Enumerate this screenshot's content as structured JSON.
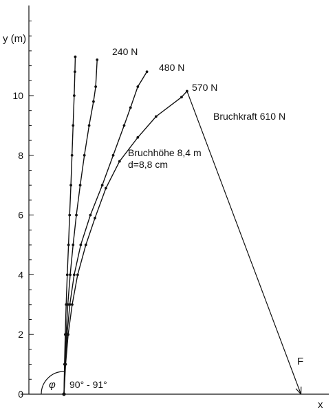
{
  "chart_data": {
    "type": "line",
    "xlabel": "x",
    "ylabel": "y (m)",
    "ylim": [
      0,
      12.5
    ],
    "y_ticks": [
      0,
      2,
      4,
      6,
      8,
      10
    ],
    "y_minor_step": 0.5,
    "series": [
      {
        "name": "240 N",
        "points": [
          [
            0,
            0
          ],
          [
            0.03,
            1
          ],
          [
            0.07,
            2
          ],
          [
            0.12,
            3
          ],
          [
            0.18,
            4
          ],
          [
            0.25,
            5
          ],
          [
            0.31,
            6
          ],
          [
            0.38,
            7
          ],
          [
            0.44,
            8
          ],
          [
            0.5,
            9
          ],
          [
            0.56,
            10
          ],
          [
            0.6,
            10.8
          ],
          [
            0.62,
            11.3
          ]
        ]
      },
      {
        "name": "480 N",
        "points": [
          [
            0,
            0
          ],
          [
            0.05,
            1
          ],
          [
            0.12,
            2
          ],
          [
            0.21,
            3
          ],
          [
            0.34,
            4
          ],
          [
            0.5,
            5
          ],
          [
            0.68,
            6
          ],
          [
            0.89,
            7
          ],
          [
            1.12,
            8
          ],
          [
            1.38,
            9
          ],
          [
            1.62,
            9.8
          ],
          [
            1.74,
            10.3
          ],
          [
            1.82,
            11.2
          ]
        ]
      },
      {
        "name": "570 N",
        "points": [
          [
            0,
            0
          ],
          [
            0.07,
            1
          ],
          [
            0.17,
            2
          ],
          [
            0.32,
            3
          ],
          [
            0.56,
            4
          ],
          [
            0.92,
            5
          ],
          [
            1.45,
            6
          ],
          [
            2.1,
            7
          ],
          [
            2.7,
            8
          ],
          [
            3.3,
            9
          ],
          [
            3.65,
            9.6
          ],
          [
            4.05,
            10.3
          ],
          [
            4.55,
            10.8
          ]
        ]
      },
      {
        "name": "",
        "points": [
          [
            0,
            0
          ],
          [
            0.09,
            1
          ],
          [
            0.23,
            2
          ],
          [
            0.45,
            3
          ],
          [
            0.75,
            4
          ],
          [
            1.2,
            5
          ],
          [
            1.7,
            5.9
          ],
          [
            2.3,
            6.9
          ],
          [
            3.05,
            7.8
          ],
          [
            4.05,
            8.6
          ],
          [
            5.05,
            9.3
          ],
          [
            6.45,
            9.95
          ],
          [
            6.75,
            10.15
          ]
        ]
      }
    ],
    "series_labels": [
      "240 N",
      "480 N",
      "570 N"
    ],
    "force_line": {
      "from": [
        6.75,
        10.15
      ],
      "to": [
        13.0,
        0
      ],
      "label": "F"
    },
    "annotations": {
      "break_force": "Bruchkraft 610 N",
      "break_height": "Bruchhöhe 8,4 m",
      "diameter": "d=8,8 cm",
      "angle_symbol": "φ",
      "angle_value": "90° - 91°"
    }
  }
}
